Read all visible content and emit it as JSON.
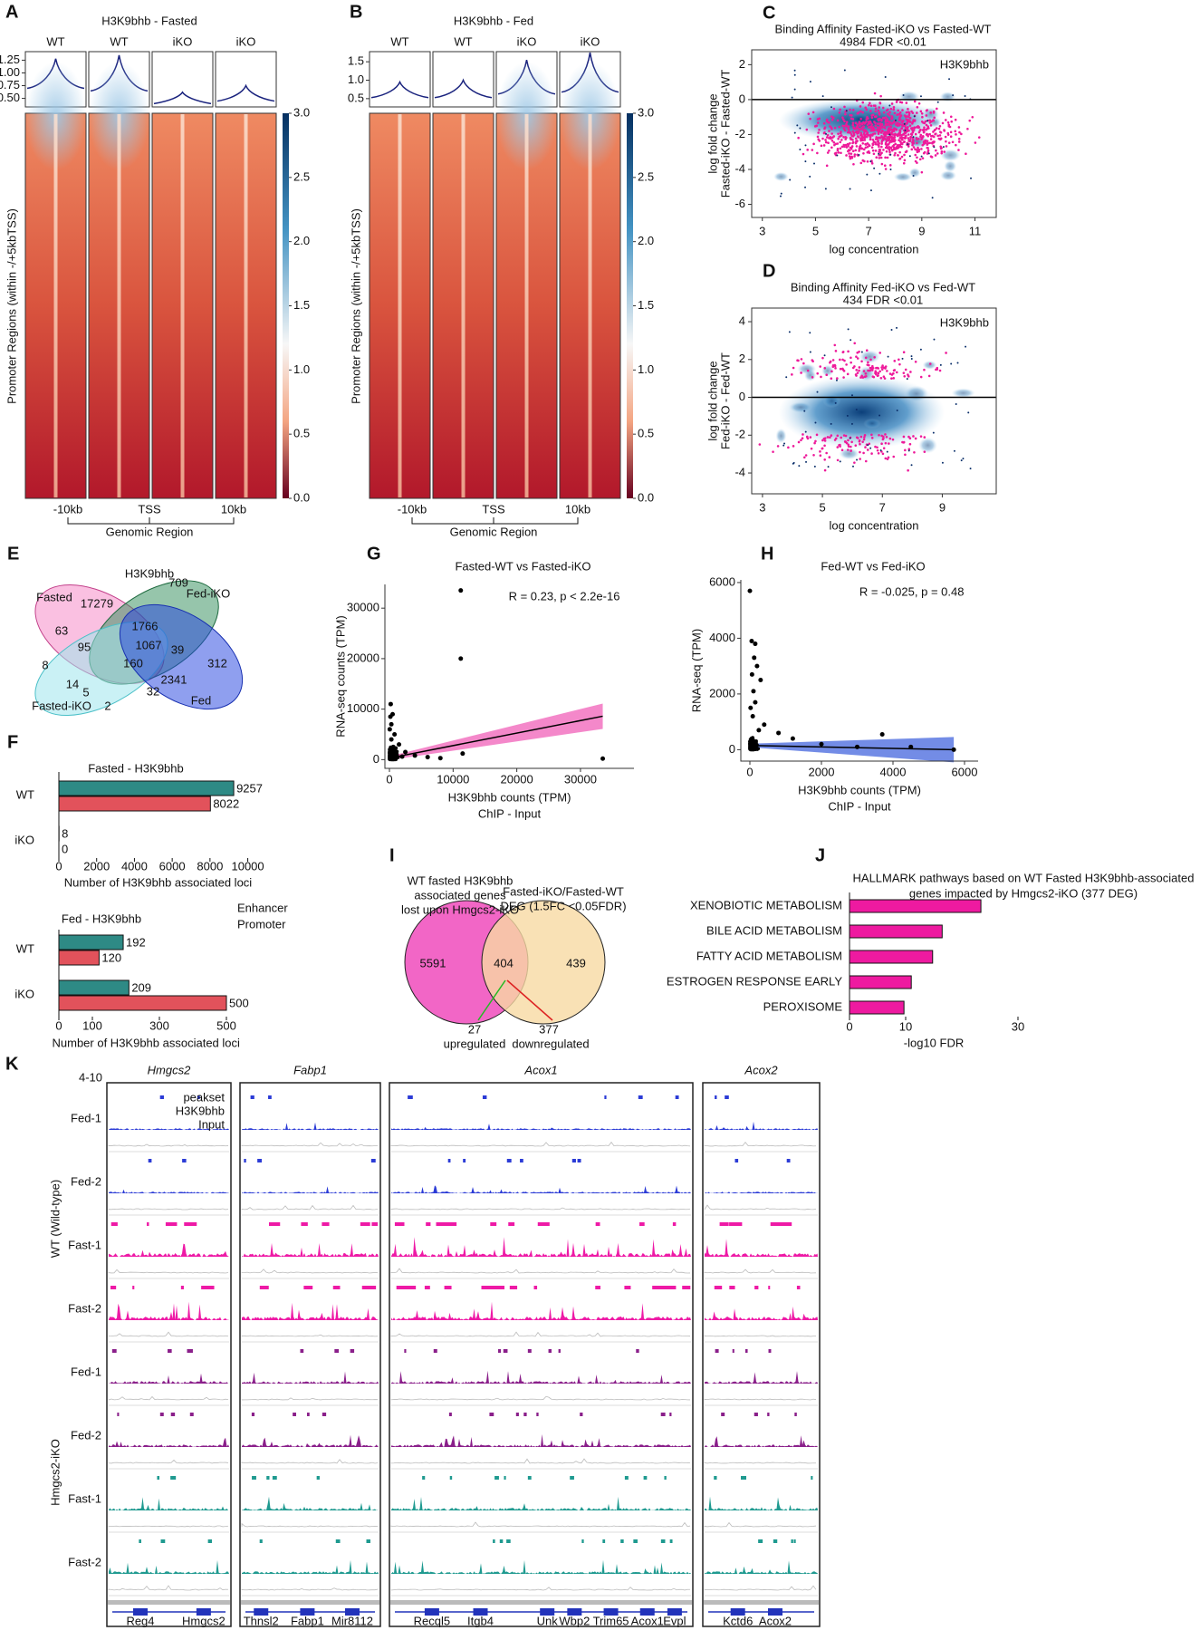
{
  "heatmaps": [
    {
      "letter": "A",
      "title": "H3K9bhb - Fasted",
      "columns": [
        "WT",
        "WT",
        "iKO",
        "iKO"
      ],
      "profile_ylim": [
        0.35,
        1.4
      ],
      "profile_yticks": [
        {
          "value": 0.5,
          "label": "0.50"
        },
        {
          "value": 0.75,
          "label": "0.75"
        },
        {
          "value": 1,
          "label": "1.00"
        },
        {
          "value": 1.25,
          "label": "1.25"
        }
      ],
      "profile_base": [
        0.75,
        0.7,
        0.45,
        0.5
      ],
      "profile_peaks": [
        1.28,
        1.35,
        0.62,
        0.75
      ],
      "colorbar_lim": [
        0,
        3
      ],
      "colorbar_ticks": [
        {
          "value": 0,
          "label": "0.0"
        },
        0.5,
        {
          "value": 1,
          "label": "1.0"
        },
        1.5,
        {
          "value": 2,
          "label": "2.0"
        },
        2.5,
        {
          "value": 3,
          "label": "3.0"
        }
      ],
      "ylabel": "Promoter Regions (within -/+5kbTSS)",
      "xticks": [
        "-10kb",
        "TSS",
        "10kb"
      ],
      "xlabel": "Genomic Region"
    },
    {
      "letter": "B",
      "title": "H3K9bhb - Fed",
      "columns": [
        "WT",
        "WT",
        "iKO",
        "iKO"
      ],
      "profile_ylim": [
        0.3,
        1.75
      ],
      "profile_yticks": [
        0.5,
        {
          "value": 1,
          "label": "1.0"
        },
        1.5
      ],
      "profile_base": [
        0.6,
        0.6,
        0.7,
        0.75
      ],
      "profile_peaks": [
        0.95,
        1.0,
        1.55,
        1.75
      ],
      "colorbar_lim": [
        0,
        3
      ],
      "colorbar_ticks": [
        {
          "value": 0,
          "label": "0.0"
        },
        0.5,
        {
          "value": 1,
          "label": "1.0"
        },
        1.5,
        {
          "value": 2,
          "label": "2.0"
        },
        2.5,
        {
          "value": 3,
          "label": "3.0"
        }
      ],
      "ylabel": "Promoter Regions (within -/+5kbTSS)",
      "xticks": [
        "-10kb",
        "TSS",
        "10kb"
      ],
      "xlabel": "Genomic Region"
    }
  ],
  "ma_plots": [
    {
      "letter": "C",
      "title": [
        "Binding Affinity Fasted-iKO vs Fasted-WT",
        "4984 FDR <0.01"
      ],
      "label": "H3K9bhb",
      "ylabel": [
        "log fold change",
        "Fasted-iKO - Fasted-WT"
      ],
      "xlabel": "log concentration",
      "xlim": [
        2.6,
        11.8
      ],
      "xticks": [
        3,
        5,
        7,
        9,
        11
      ],
      "ylim": [
        -6.75,
        2.85
      ],
      "yticks": [
        -6,
        -4,
        -2,
        0,
        2
      ],
      "reference_line": 0
    },
    {
      "letter": "D",
      "title": [
        "Binding Affinity Fed-iKO vs Fed-WT",
        "434 FDR <0.01"
      ],
      "label": "H3K9bhb",
      "ylabel": [
        "log fold change",
        "Fed-iKO - Fed-WT"
      ],
      "xlabel": "log concentration",
      "xlim": [
        2.64,
        10.8
      ],
      "xticks": [
        3,
        5,
        7,
        9
      ],
      "ylim": [
        -5.1,
        4.72
      ],
      "yticks": [
        -4,
        -2,
        0,
        2,
        4
      ],
      "reference_line": 0
    }
  ],
  "venn_E": {
    "letter": "E",
    "title": "H3K9bhb",
    "sets": [
      "Fasted",
      "Fed-iKO",
      "Fasted-iKO",
      "Fed"
    ],
    "counts": [
      17279,
      709,
      1766,
      63,
      39,
      95,
      1067,
      8,
      160,
      312,
      14,
      2341,
      5,
      32,
      2
    ]
  },
  "venn_I": {
    "letter": "I",
    "left_label": [
      "WT fasted H3K9bhb",
      "associated genes",
      "lost upon Hmgcs2-iKO"
    ],
    "right_label": [
      "Fasted-iKO/Fasted-WT",
      "DEG (1.5FC <0.05FDR)"
    ],
    "counts": [
      5591,
      404,
      439
    ],
    "up": [
      27,
      "upregulated"
    ],
    "down": [
      377,
      "downregulated"
    ]
  },
  "chart_data": [
    {
      "type": "hbar",
      "letter": "F",
      "title": "Fasted - H3K9bhb",
      "title_color": "#e6198f",
      "categories": [
        "WT",
        "iKO"
      ],
      "series": [
        {
          "color": "#2e8a85",
          "values": [
            9257,
            8
          ]
        },
        {
          "color": "#e2525b",
          "values": [
            8022,
            0
          ]
        }
      ],
      "xlim": [
        0,
        10500
      ],
      "xticks": [
        0,
        2000,
        4000,
        6000,
        8000,
        10000
      ],
      "xlabel": "Number of H3K9bhb associated loci"
    },
    {
      "type": "hbar",
      "title": "Fed - H3K9bhb",
      "title_color": "#2233dd",
      "categories": [
        "WT",
        "iKO"
      ],
      "series": [
        {
          "name": "Enhancer",
          "color": "#2e8a85",
          "values": [
            192,
            209
          ]
        },
        {
          "name": "Promoter",
          "color": "#e2525b",
          "values": [
            120,
            500
          ]
        }
      ],
      "xlim": [
        0,
        520
      ],
      "xticks": [
        0,
        100,
        300,
        500
      ],
      "xlabel": "Number of H3K9bhb associated loci"
    },
    {
      "type": "scatter",
      "letter": "G",
      "title": "Fasted-WT vs Fasted-iKO",
      "annotation": "R = 0.23, p < 2.2e-16",
      "ylabel": "RNA-seq counts (TPM)",
      "xlabel": [
        "H3K9bhb counts (TPM)",
        "ChIP - Input"
      ],
      "x": [
        200,
        500,
        300,
        800,
        1500,
        2500,
        4000,
        6000,
        8000,
        11200,
        11200,
        11500,
        33500,
        100,
        300,
        50,
        150,
        600,
        1000,
        2000
      ],
      "y": [
        11000,
        9000,
        7000,
        5000,
        3000,
        1500,
        800,
        500,
        300,
        33500,
        20000,
        1200,
        200,
        2000,
        4000,
        6000,
        8500,
        2500,
        1000,
        600
      ],
      "fit": {
        "x": [
          0,
          33500
        ],
        "y": [
          300,
          8600
        ]
      },
      "band_color": "#f060b8",
      "xlim": [
        -711,
        38400
      ],
      "xticks": [
        0,
        10000,
        20000,
        30000
      ],
      "ylim": [
        -1730,
        34700
      ],
      "yticks": [
        0,
        10000,
        20000,
        30000
      ]
    },
    {
      "type": "scatter",
      "letter": "H",
      "title": "Fed-WT vs Fed-iKO",
      "annotation": "R = -0.025, p = 0.48",
      "ylabel": "RNA-seq (TPM)",
      "xlabel": [
        "H3K9bhb counts (TPM)",
        "ChIP - Input"
      ],
      "x": [
        0,
        50,
        150,
        200,
        300,
        100,
        150,
        400,
        800,
        1200,
        2000,
        3700,
        3000,
        4500,
        5700,
        20,
        80,
        250,
        60,
        120
      ],
      "y": [
        5700,
        3900,
        3800,
        3000,
        2500,
        2100,
        1700,
        900,
        600,
        400,
        200,
        550,
        100,
        100,
        0,
        1500,
        1200,
        700,
        2700,
        3300
      ],
      "fit": {
        "x": [
          0,
          5700
        ],
        "y": [
          150,
          0
        ]
      },
      "band_color": "#4466dd",
      "xlim": [
        -253,
        6380
      ],
      "xticks": [
        0,
        2000,
        4000,
        6000
      ],
      "ylim": [
        -410,
        6095
      ],
      "yticks": [
        0,
        2000,
        4000,
        6000
      ]
    },
    {
      "type": "hbar",
      "letter": "J",
      "title": [
        "HALLMARK pathways based on WT Fasted H3K9bhb-associated",
        "genes impacted by Hmgcs2-iKO (377 DEG)"
      ],
      "categories": [
        "XENOBIOTIC METABOLISM",
        "BILE ACID METABOLISM",
        "FATTY ACID METABOLISM",
        "ESTROGEN RESPONSE EARLY",
        "PEROXISOME"
      ],
      "values": [
        23.4,
        16.5,
        14.8,
        11,
        9.7
      ],
      "color": "#ee1aa0",
      "xlim": [
        0,
        30
      ],
      "xticks": [
        0,
        10,
        30
      ],
      "xlabel": "-log10 FDR"
    }
  ],
  "tracks": {
    "letter": "K",
    "timepoint": "4-10",
    "legend": [
      "peakset",
      "H3K9bhb",
      "Input"
    ],
    "genes": [
      "Hmgcs2",
      "Fabp1",
      "Acox1",
      "Acox2"
    ],
    "rows": [
      "Fed-1",
      "Fed-2",
      "Fast-1",
      "Fast-2",
      "Fed-1",
      "Fed-2",
      "Fast-1",
      "Fast-2"
    ],
    "groups": [
      "WT (Wild-type)",
      "Hmgcs2-iKO"
    ],
    "annotations": [
      [
        "Reg4",
        "Hmgcs2"
      ],
      [
        "Thnsl2",
        "Fabp1",
        "Mir8112"
      ],
      [
        "Recql5",
        "Itgb4",
        "Unk",
        "Wbp2",
        "Trim65",
        "Acox1",
        "Evpl"
      ],
      [
        "Kctd6",
        "Acox2"
      ]
    ]
  }
}
